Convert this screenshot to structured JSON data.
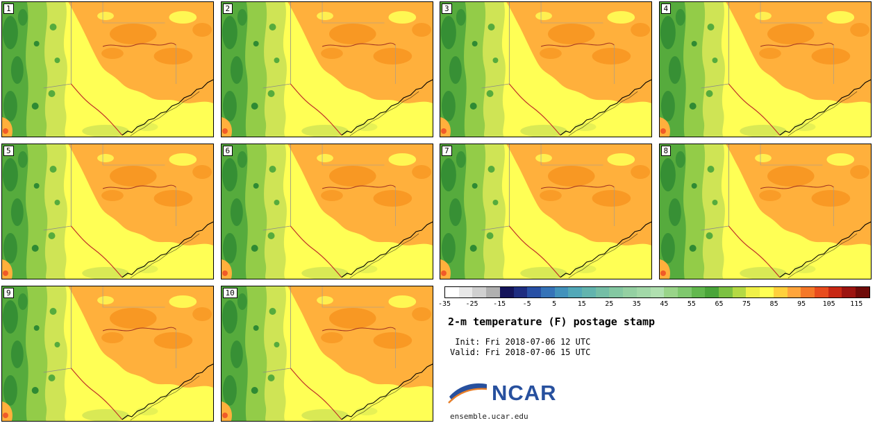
{
  "figure": {
    "title": "2-m temperature (F) postage stamp",
    "init_line": " Init: Fri 2018-07-06 12 UTC",
    "valid_line": "Valid: Fri 2018-07-06 15 UTC",
    "logo_text": "NCAR",
    "footer": "ensemble.ucar.edu",
    "logo_blue": "#27509e",
    "logo_orange": "#e87f2a"
  },
  "panels": [
    {
      "label": "1"
    },
    {
      "label": "2"
    },
    {
      "label": "3"
    },
    {
      "label": "4"
    },
    {
      "label": "5"
    },
    {
      "label": "6"
    },
    {
      "label": "7"
    },
    {
      "label": "8"
    },
    {
      "label": "9"
    },
    {
      "label": "10"
    }
  ],
  "colorbar": {
    "min": -35,
    "max": 120,
    "segment_step": 5,
    "ticks": [
      -35,
      -25,
      -15,
      -5,
      5,
      15,
      25,
      35,
      45,
      55,
      65,
      75,
      85,
      95,
      105,
      115
    ],
    "colors": [
      "#ffffff",
      "#e8e8e8",
      "#d0d0d0",
      "#b0b0b0",
      "#14145a",
      "#1e2d80",
      "#2850a5",
      "#3573b8",
      "#4292bc",
      "#52a8b8",
      "#62b4ae",
      "#74bea6",
      "#84c8a2",
      "#94d0a2",
      "#a2d8a8",
      "#b0e0b0",
      "#99d489",
      "#7fc86e",
      "#62b84e",
      "#4aa53a",
      "#7cc142",
      "#b4d944",
      "#f0f048",
      "#ffff54",
      "#ffd03c",
      "#ffa53c",
      "#f57828",
      "#e84c1e",
      "#c82814",
      "#9c1410",
      "#6e0a08"
    ]
  },
  "chart_data": {
    "type": "heatmap",
    "title": "2-m temperature (F) postage stamp",
    "units": "F",
    "n_members": 10,
    "member_labels": [
      "1",
      "2",
      "3",
      "4",
      "5",
      "6",
      "7",
      "8",
      "9",
      "10"
    ],
    "init_time": "Fri 2018-07-06 12 UTC",
    "valid_time": "Fri 2018-07-06 15 UTC",
    "colorbar": {
      "min": -35,
      "max": 120,
      "step": 5,
      "tick_values": [
        -35,
        -25,
        -15,
        -5,
        5,
        15,
        25,
        35,
        45,
        55,
        65,
        75,
        85,
        95,
        105,
        115
      ]
    },
    "legend_position": "bottom-right",
    "source": "ensemble.ucar.edu"
  }
}
